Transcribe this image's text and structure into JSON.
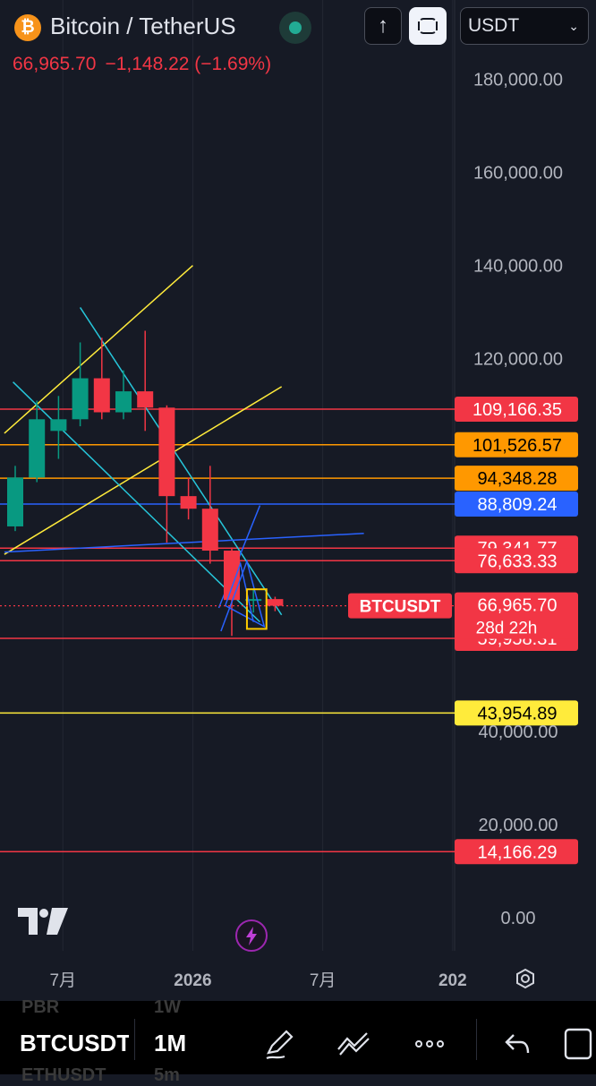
{
  "header": {
    "coin_icon_glyph": "₿",
    "symbol_title": "Bitcoin / TetherUS",
    "market_status_color": "#22ab94",
    "last_price": "66,965.70",
    "change": "−1,148.22 (−1.69%)",
    "change_color": "#f23645"
  },
  "toolbar": {
    "up_glyph": "↑",
    "up_icon": "arrow-up-icon",
    "lock_icon": "scale-lock-icon",
    "currency_value": "USDT"
  },
  "chart_data": {
    "type": "candlestick",
    "symbol": "BTCUSDT",
    "interval": "1M",
    "ylim": [
      0,
      190000
    ],
    "y_ticks": [
      {
        "value": 0,
        "label": "0.00"
      },
      {
        "value": 20000,
        "label": "20,000.00"
      },
      {
        "value": 40000,
        "label": "40,000.00"
      },
      {
        "value": 120000,
        "label": "120,000.00"
      },
      {
        "value": 140000,
        "label": "140,000.00"
      },
      {
        "value": 160000,
        "label": "160,000.00"
      },
      {
        "value": 180000,
        "label": "180,000.00"
      }
    ],
    "x_ticks": [
      {
        "idx": 2.2,
        "label": "7月",
        "bold": false
      },
      {
        "idx": 8.2,
        "label": "2026",
        "bold": true
      },
      {
        "idx": 14.2,
        "label": "7月",
        "bold": false
      },
      {
        "idx": 20.2,
        "label": "202",
        "bold": true
      }
    ],
    "candles": [
      {
        "open": 84000,
        "high": 97000,
        "low": 83000,
        "close": 94500
      },
      {
        "open": 94500,
        "high": 111000,
        "low": 93500,
        "close": 107000
      },
      {
        "open": 104500,
        "high": 112000,
        "low": 98500,
        "close": 107000
      },
      {
        "open": 107000,
        "high": 123500,
        "low": 105500,
        "close": 115800
      },
      {
        "open": 115800,
        "high": 124500,
        "low": 107000,
        "close": 108500
      },
      {
        "open": 108500,
        "high": 117500,
        "low": 107000,
        "close": 113000
      },
      {
        "open": 113000,
        "high": 126000,
        "low": 104500,
        "close": 109500
      },
      {
        "open": 109500,
        "high": 110000,
        "low": 80500,
        "close": 90500
      },
      {
        "open": 90500,
        "high": 94500,
        "low": 85500,
        "close": 87800
      },
      {
        "open": 87800,
        "high": 97000,
        "low": 76000,
        "close": 78800
      },
      {
        "open": 78800,
        "high": 79500,
        "low": 60500,
        "close": 68200
      },
      {
        "open": 68200,
        "high": 70500,
        "low": 65500,
        "close": 68400
      },
      {
        "open": 68400,
        "high": 68900,
        "low": 65800,
        "close": 66965.7
      }
    ],
    "horizontal_lines": [
      {
        "value": 109166.35,
        "label": "109,166.35",
        "color": "#f23645"
      },
      {
        "value": 101526.57,
        "label": "101,526.57",
        "color": "#ff9800"
      },
      {
        "value": 94348.28,
        "label": "94,348.28",
        "color": "#ff9800"
      },
      {
        "value": 88809.24,
        "label": "88,809.24",
        "color": "#2962ff"
      },
      {
        "value": 79341.77,
        "label": "79,341.77",
        "color": "#f23645"
      },
      {
        "value": 76633.33,
        "label": "76,633.33",
        "color": "#f23645"
      },
      {
        "value": 59958.31,
        "label": "59,958.31",
        "color": "#f23645"
      },
      {
        "value": 43954.89,
        "label": "43,954.89",
        "color": "#ffeb3b"
      },
      {
        "value": 14166.29,
        "label": "14,166.29",
        "color": "#f23645"
      }
    ],
    "last_price": {
      "value": 66965.7,
      "label": "66,965.70",
      "countdown": "28d 22h",
      "symbol_tag": "BTCUSDT",
      "color": "#f23645"
    },
    "trendlines": [
      {
        "from": [
          -0.5,
          104000
        ],
        "to": [
          8.2,
          140000
        ],
        "color": "#ffeb3b"
      },
      {
        "from": [
          -0.5,
          78000
        ],
        "to": [
          12.3,
          114000
        ],
        "color": "#ffeb3b"
      },
      {
        "from": [
          -0.1,
          115000
        ],
        "to": [
          11.3,
          63500
        ],
        "color": "#26c6da"
      },
      {
        "from": [
          3.0,
          131000
        ],
        "to": [
          12.3,
          65000
        ],
        "color": "#26c6da"
      },
      {
        "from": [
          -0.5,
          78500
        ],
        "to": [
          16.1,
          82500
        ],
        "color": "#2962ff"
      },
      {
        "from": [
          9.4,
          66500
        ],
        "to": [
          11.3,
          88500
        ],
        "color": "#2962ff"
      }
    ],
    "pattern": {
      "points": [
        [
          9.5,
          61500
        ],
        [
          10.7,
          76500
        ],
        [
          11.5,
          62500
        ],
        [
          9.7,
          67000
        ],
        [
          10.4,
          76000
        ],
        [
          11.0,
          63500
        ]
      ],
      "color": "#2962ff"
    },
    "highlight_box": {
      "x0": 10.7,
      "x1": 11.6,
      "y0": 62000,
      "y1": 70500,
      "color": "#ffcc00"
    }
  },
  "branding": {
    "logo_text": "TV",
    "bolt_glyph": "⚡"
  },
  "bottom_bar": {
    "symbol": "BTCUSDT",
    "interval": "1M",
    "ghost_above_symbol": "PBR",
    "ghost_above_interval": "1W",
    "ghost_below_symbol": "ETHUSDT",
    "ghost_below_interval": "5m",
    "icons": [
      "drawing-pen-icon",
      "line-tools-icon",
      "more-icon",
      "undo-icon",
      "window-icon"
    ]
  }
}
